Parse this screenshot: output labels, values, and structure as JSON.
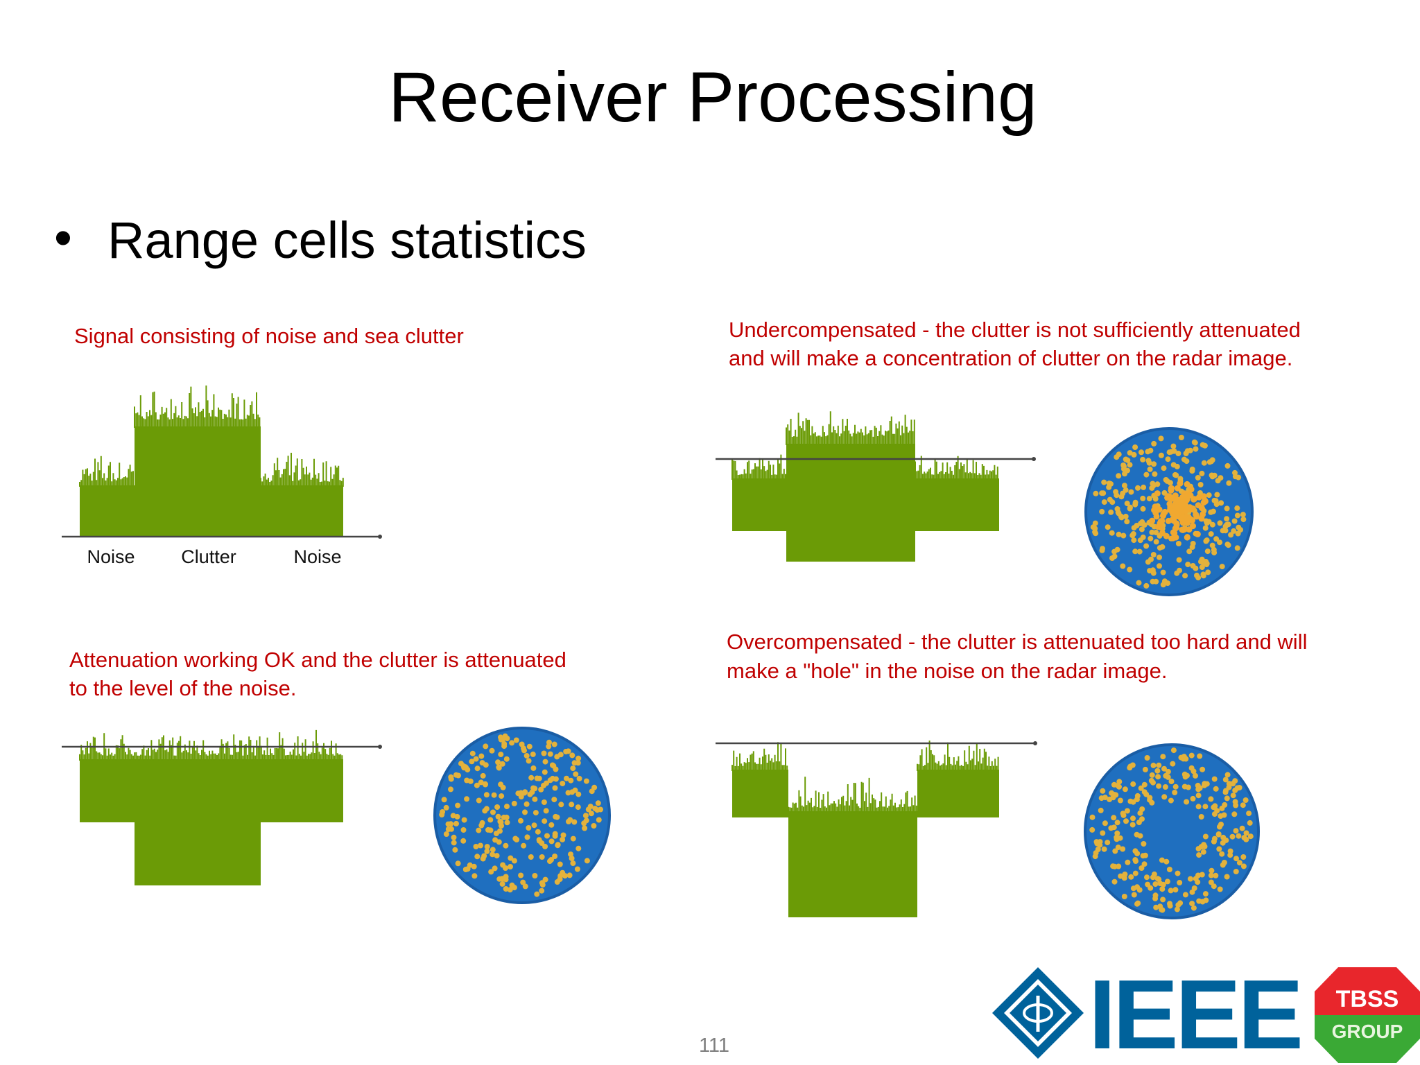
{
  "title": "Receiver Processing",
  "bullet": "Range cells statistics",
  "panels": [
    {
      "caption": [
        "Signal consisting of noise and sea clutter"
      ],
      "labels": [
        "Noise",
        "Clutter",
        "Noise"
      ]
    },
    {
      "caption": [
        "Undercompensated - the clutter is not sufficiently attenuated",
        "and will make a concentration of clutter on the radar image."
      ]
    },
    {
      "caption": [
        "Attenuation working OK and the clutter is attenuated",
        "to the level of the noise."
      ]
    },
    {
      "caption": [
        "Overcompensated - the clutter is attenuated too hard and will",
        "make a \"hole\" in the noise on the radar image."
      ]
    }
  ],
  "page_number": "111",
  "logo": {
    "main": "IEEE",
    "badge_top": "TBSS",
    "badge_bottom": "GROUP"
  }
}
